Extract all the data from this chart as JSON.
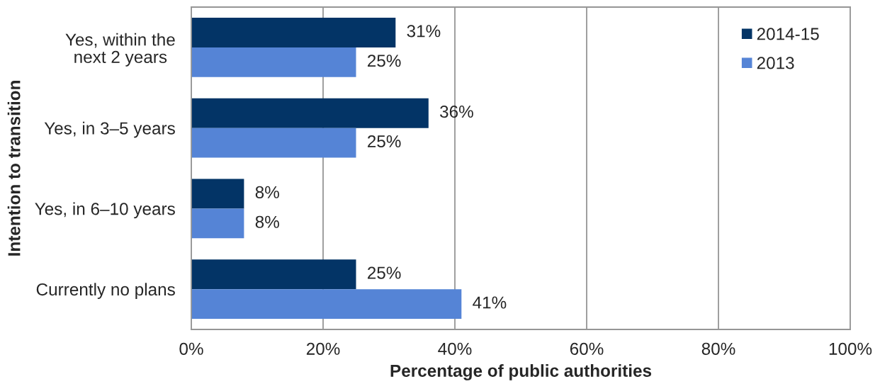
{
  "chart_data": {
    "type": "bar",
    "orientation": "horizontal",
    "categories": [
      "Yes, within the\nnext 2 years",
      "Yes, in 3–5 years",
      "Yes, in 6–10 years",
      "Currently no plans"
    ],
    "series": [
      {
        "name": "2014-15",
        "color": "#033466",
        "values": [
          31,
          36,
          8,
          25
        ],
        "value_labels": [
          "31%",
          "36%",
          "8%",
          "25%"
        ]
      },
      {
        "name": "2013",
        "color": "#5584d6",
        "values": [
          25,
          25,
          8,
          41
        ],
        "value_labels": [
          "25%",
          "25%",
          "8%",
          "41%"
        ]
      }
    ],
    "xlabel": "Percentage of public authorities",
    "ylabel": "Intention to transition",
    "xlim": [
      0,
      100
    ],
    "xticks": [
      {
        "value": 0,
        "label": "0%"
      },
      {
        "value": 20,
        "label": "20%"
      },
      {
        "value": 40,
        "label": "40%"
      },
      {
        "value": 60,
        "label": "60%"
      },
      {
        "value": 80,
        "label": "80%"
      },
      {
        "value": 100,
        "label": "100%"
      }
    ],
    "grid": "x",
    "legend": "top right"
  }
}
